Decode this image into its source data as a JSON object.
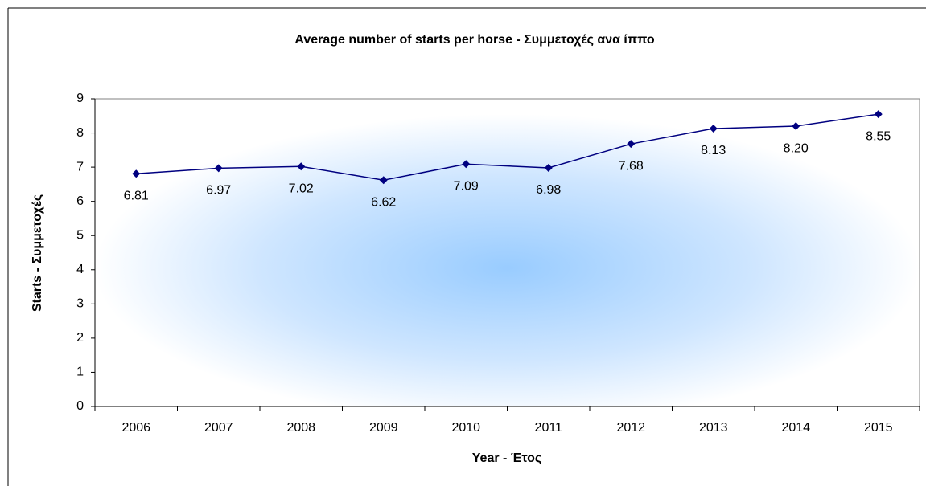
{
  "chart_data": {
    "type": "line",
    "title": "Average number of starts per horse - Συμμετοχές ανα ίππο",
    "x_label": "Year - Έτος",
    "y_label": "Starts - Συμμετοχές",
    "categories": [
      "2006",
      "2007",
      "2008",
      "2009",
      "2010",
      "2011",
      "2012",
      "2013",
      "2014",
      "2015"
    ],
    "series": [
      {
        "name": "Starts",
        "color": "#000080",
        "values": [
          6.81,
          6.97,
          7.02,
          6.62,
          7.09,
          6.98,
          7.68,
          8.13,
          8.2,
          8.55
        ],
        "value_labels": [
          "6.81",
          "6.97",
          "7.02",
          "6.62",
          "7.09",
          "6.98",
          "7.68",
          "8.13",
          "8.20",
          "8.55"
        ]
      }
    ],
    "ylim": [
      0,
      9
    ],
    "yticks": [
      0,
      1,
      2,
      3,
      4,
      5,
      6,
      7,
      8,
      9
    ]
  }
}
